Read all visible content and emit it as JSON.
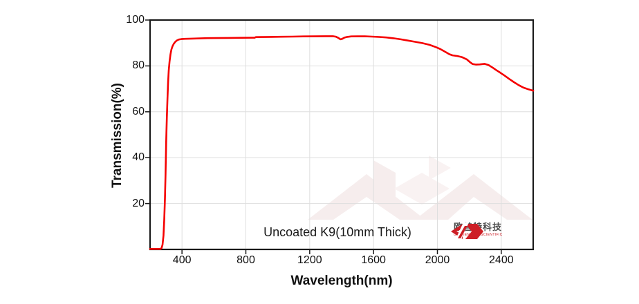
{
  "chart_data": {
    "type": "line",
    "title": "",
    "xlabel": "Wavelength(nm)",
    "ylabel": "Transmission(%)",
    "xlim": [
      200,
      2600
    ],
    "ylim": [
      0,
      100
    ],
    "x_ticks": [
      400,
      800,
      1200,
      1600,
      2000,
      2400
    ],
    "y_ticks": [
      20,
      40,
      60,
      80,
      100
    ],
    "grid": true,
    "legend": "none",
    "annotation": "Uncoated K9(10mm Thick)",
    "series": [
      {
        "name": "Uncoated K9 10mm transmission",
        "color": "#f50000",
        "points": [
          [
            200,
            0.2
          ],
          [
            266,
            0.2
          ],
          [
            272,
            0.6
          ],
          [
            278,
            2
          ],
          [
            284,
            6
          ],
          [
            289,
            13
          ],
          [
            293,
            22
          ],
          [
            297,
            33
          ],
          [
            301,
            47
          ],
          [
            305,
            57
          ],
          [
            309,
            66
          ],
          [
            313,
            73
          ],
          [
            317,
            78
          ],
          [
            322,
            82
          ],
          [
            328,
            85
          ],
          [
            334,
            87.2
          ],
          [
            341,
            88.6
          ],
          [
            349,
            89.7
          ],
          [
            358,
            90.5
          ],
          [
            368,
            91.1
          ],
          [
            380,
            91.5
          ],
          [
            395,
            91.7
          ],
          [
            420,
            91.8
          ],
          [
            460,
            91.9
          ],
          [
            510,
            92.0
          ],
          [
            560,
            92.1
          ],
          [
            620,
            92.15
          ],
          [
            690,
            92.2
          ],
          [
            770,
            92.25
          ],
          [
            840,
            92.3
          ],
          [
            855,
            92.3
          ],
          [
            862,
            92.55
          ],
          [
            900,
            92.6
          ],
          [
            960,
            92.65
          ],
          [
            1020,
            92.7
          ],
          [
            1090,
            92.78
          ],
          [
            1160,
            92.85
          ],
          [
            1230,
            92.9
          ],
          [
            1300,
            92.95
          ],
          [
            1345,
            92.95
          ],
          [
            1365,
            92.7
          ],
          [
            1380,
            92.2
          ],
          [
            1392,
            91.6
          ],
          [
            1404,
            91.8
          ],
          [
            1418,
            92.35
          ],
          [
            1435,
            92.65
          ],
          [
            1460,
            92.85
          ],
          [
            1500,
            92.9
          ],
          [
            1545,
            92.88
          ],
          [
            1590,
            92.78
          ],
          [
            1635,
            92.62
          ],
          [
            1680,
            92.4
          ],
          [
            1725,
            92.05
          ],
          [
            1770,
            91.6
          ],
          [
            1815,
            91.05
          ],
          [
            1860,
            90.5
          ],
          [
            1905,
            89.95
          ],
          [
            1950,
            89.2
          ],
          [
            1990,
            88.2
          ],
          [
            2020,
            87.3
          ],
          [
            2050,
            86.1
          ],
          [
            2075,
            85.1
          ],
          [
            2095,
            84.6
          ],
          [
            2125,
            84.3
          ],
          [
            2155,
            83.8
          ],
          [
            2185,
            82.8
          ],
          [
            2205,
            81.6
          ],
          [
            2220,
            80.8
          ],
          [
            2240,
            80.6
          ],
          [
            2265,
            80.65
          ],
          [
            2295,
            80.9
          ],
          [
            2320,
            80.4
          ],
          [
            2345,
            79.3
          ],
          [
            2370,
            78.1
          ],
          [
            2395,
            77.0
          ],
          [
            2420,
            75.8
          ],
          [
            2450,
            74.3
          ],
          [
            2480,
            72.9
          ],
          [
            2510,
            71.6
          ],
          [
            2540,
            70.5
          ],
          [
            2570,
            69.8
          ],
          [
            2600,
            69.2
          ]
        ]
      }
    ]
  },
  "branding": {
    "company_cn": "欧普特科技",
    "company_en": "GOLDEN WAY SCIENTIFIC",
    "logo_color": "#cd1f26"
  },
  "colors": {
    "curve": "#f50000",
    "gridline": "#dedede",
    "frame": "#1a1a1a",
    "watermark": "#f6eded"
  }
}
